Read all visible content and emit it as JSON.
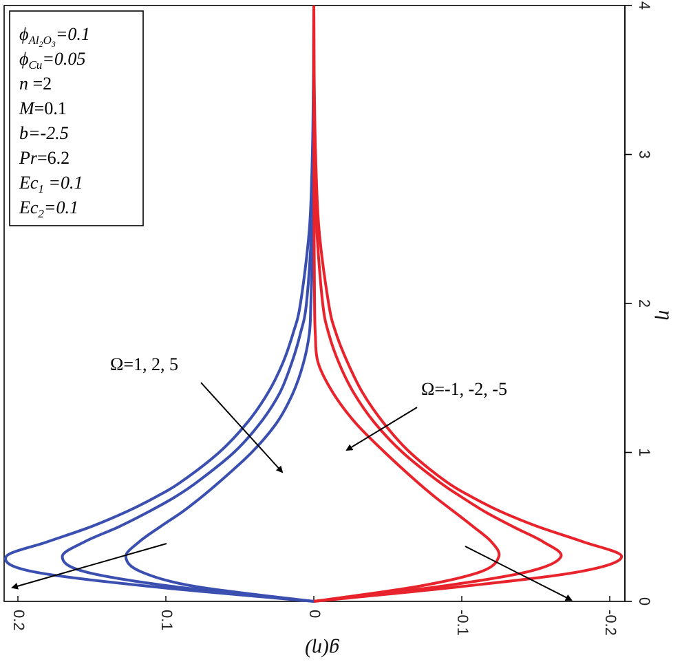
{
  "chart_data": {
    "type": "line",
    "orientation": "rotated",
    "xlabel": "g(η)",
    "ylabel": "η",
    "xlim": [
      0.21,
      -0.2
    ],
    "ylim": [
      0,
      4
    ],
    "x_ticks": [
      "0.2",
      "0.1",
      "0",
      "-0.1",
      "-0.2"
    ],
    "y_ticks": [
      "0",
      "1",
      "2",
      "3",
      "4"
    ],
    "x_tick_values": [
      0.2,
      0.1,
      0,
      -0.1,
      -0.2
    ],
    "y_tick_values": [
      0,
      1,
      2,
      3,
      4
    ],
    "grid": false,
    "legend_box": [
      "ϕ_{Al2O3}=0.1",
      "ϕ_Cu=0.05",
      "n =2",
      "M=0.1",
      "b=-2.5",
      "Pr=6.2",
      "Ec_1 =0.1",
      "Ec_2 =0.1"
    ],
    "series": [
      {
        "name": "Ω=1",
        "color": "#3a4fb0",
        "eta": [
          0,
          0.1,
          0.2,
          0.3,
          0.4,
          0.5,
          0.6,
          0.7,
          0.8,
          1.0,
          1.2,
          1.4,
          1.6,
          1.8,
          2.0,
          2.5,
          3.0,
          3.5,
          4.0
        ],
        "g": [
          0,
          0.08,
          0.117,
          0.127,
          0.118,
          0.104,
          0.089,
          0.076,
          0.064,
          0.042,
          0.025,
          0.014,
          0.007,
          0.003,
          0.002,
          0.0005,
          0.0002,
          0.0001,
          0
        ]
      },
      {
        "name": "Ω=2",
        "color": "#3a4fb0",
        "eta": [
          0,
          0.1,
          0.2,
          0.3,
          0.4,
          0.5,
          0.6,
          0.7,
          0.8,
          1.0,
          1.2,
          1.4,
          1.6,
          1.8,
          2.0,
          2.5,
          3.0,
          3.5,
          4.0
        ],
        "g": [
          0,
          0.095,
          0.155,
          0.17,
          0.155,
          0.132,
          0.112,
          0.094,
          0.079,
          0.054,
          0.036,
          0.023,
          0.015,
          0.009,
          0.005,
          0.0015,
          0.0005,
          0.0002,
          0
        ]
      },
      {
        "name": "Ω=5",
        "color": "#3a4fb0",
        "eta": [
          0,
          0.1,
          0.2,
          0.3,
          0.4,
          0.5,
          0.6,
          0.7,
          0.8,
          1.0,
          1.2,
          1.4,
          1.6,
          1.8,
          2.0,
          2.5,
          3.0,
          3.5,
          4.0
        ],
        "g": [
          0,
          0.11,
          0.19,
          0.208,
          0.18,
          0.151,
          0.127,
          0.107,
          0.09,
          0.064,
          0.045,
          0.031,
          0.021,
          0.014,
          0.009,
          0.003,
          0.001,
          0.0003,
          0
        ]
      },
      {
        "name": "Ω=-1",
        "color": "#e8232b",
        "eta": [
          0,
          0.1,
          0.2,
          0.3,
          0.4,
          0.5,
          0.6,
          0.7,
          0.8,
          1.0,
          1.2,
          1.4,
          1.6,
          1.8,
          2.0,
          2.5,
          3.0,
          3.5,
          4.0
        ],
        "g": [
          0,
          -0.07,
          -0.113,
          -0.125,
          -0.12,
          -0.108,
          -0.095,
          -0.082,
          -0.07,
          -0.048,
          -0.028,
          -0.013,
          -0.003,
          -0.001,
          -0.0005,
          -0.0002,
          -0.0001,
          0,
          0
        ]
      },
      {
        "name": "Ω=-2",
        "color": "#e8232b",
        "eta": [
          0,
          0.1,
          0.2,
          0.3,
          0.4,
          0.5,
          0.6,
          0.7,
          0.8,
          1.0,
          1.2,
          1.4,
          1.6,
          1.8,
          2.0,
          2.5,
          3.0,
          3.5,
          4.0
        ],
        "g": [
          0,
          -0.085,
          -0.145,
          -0.167,
          -0.155,
          -0.135,
          -0.116,
          -0.1,
          -0.085,
          -0.06,
          -0.041,
          -0.027,
          -0.017,
          -0.01,
          -0.006,
          -0.002,
          -0.0006,
          -0.0002,
          0
        ]
      },
      {
        "name": "Ω=-5",
        "color": "#e8232b",
        "eta": [
          0,
          0.1,
          0.2,
          0.3,
          0.4,
          0.5,
          0.6,
          0.7,
          0.8,
          1.0,
          1.2,
          1.4,
          1.6,
          1.8,
          2.0,
          2.5,
          3.0,
          3.5,
          4.0
        ],
        "g": [
          0,
          -0.1,
          -0.18,
          -0.208,
          -0.182,
          -0.152,
          -0.127,
          -0.107,
          -0.09,
          -0.065,
          -0.047,
          -0.033,
          -0.023,
          -0.015,
          -0.01,
          -0.0035,
          -0.0012,
          -0.0003,
          0
        ]
      }
    ],
    "annotations": [
      {
        "text": "Ω=1, 2, 5"
      },
      {
        "text": "Ω=-1, -2, -5"
      }
    ]
  }
}
